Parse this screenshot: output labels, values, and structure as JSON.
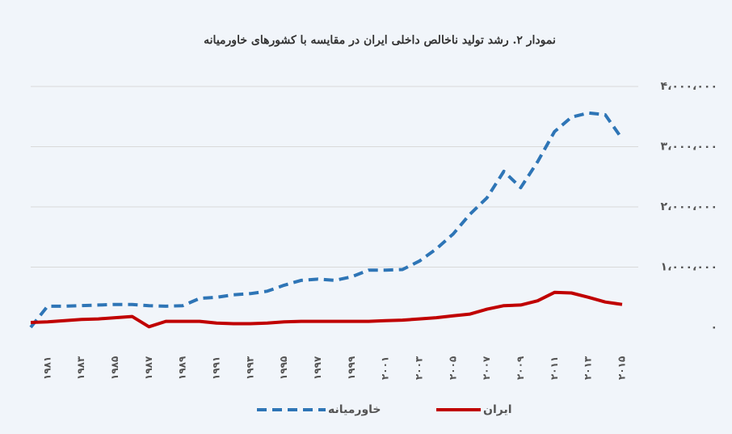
{
  "chart_data": {
    "type": "line",
    "title": "نمودار ۲. رشد تولید ناخالص داخلی ایران در مقایسه با کشورهای خاورمیانه",
    "categories": [
      null,
      "۱۹۸۱",
      null,
      "۱۹۸۳",
      null,
      "۱۹۸۵",
      null,
      "۱۹۸۷",
      null,
      "۱۹۸۹",
      null,
      "۱۹۹۱",
      null,
      "۱۹۹۳",
      null,
      "۱۹۹۵",
      null,
      "۱۹۹۷",
      null,
      "۱۹۹۹",
      null,
      "۲۰۰۱",
      null,
      "۲۰۰۳",
      null,
      "۲۰۰۵",
      null,
      "۲۰۰۷",
      null,
      "۲۰۰۹",
      null,
      "۲۰۱۱",
      null,
      "۲۰۱۳",
      null,
      "۲۰۱۵"
    ],
    "series": [
      {
        "name": "خاورمیانه",
        "color": "#2e75b6",
        "dash": true,
        "values": [
          0,
          350000,
          350000,
          360000,
          370000,
          380000,
          380000,
          360000,
          350000,
          360000,
          480000,
          500000,
          540000,
          560000,
          600000,
          700000,
          780000,
          800000,
          780000,
          840000,
          950000,
          950000,
          960000,
          1100000,
          1300000,
          1550000,
          1880000,
          2150000,
          2590000,
          2320000,
          2750000,
          3250000,
          3490000,
          3560000,
          3530000,
          3130000
        ]
      },
      {
        "name": "ایران",
        "color": "#c00000",
        "dash": false,
        "values": [
          80000,
          90000,
          110000,
          130000,
          140000,
          160000,
          180000,
          10000,
          100000,
          100000,
          100000,
          70000,
          60000,
          60000,
          70000,
          90000,
          100000,
          100000,
          100000,
          100000,
          100000,
          110000,
          120000,
          140000,
          160000,
          190000,
          220000,
          300000,
          360000,
          370000,
          440000,
          580000,
          570000,
          500000,
          420000,
          380000
        ]
      }
    ],
    "ylim": [
      0,
      4000000
    ],
    "yticks": [
      {
        "value": 0,
        "label": "۰"
      },
      {
        "value": 1000000,
        "label": "۱،۰۰۰،۰۰۰"
      },
      {
        "value": 2000000,
        "label": "۲،۰۰۰،۰۰۰"
      },
      {
        "value": 3000000,
        "label": "۳،۰۰۰،۰۰۰"
      },
      {
        "value": 4000000,
        "label": "۴،۰۰۰،۰۰۰"
      }
    ],
    "grid": true
  }
}
